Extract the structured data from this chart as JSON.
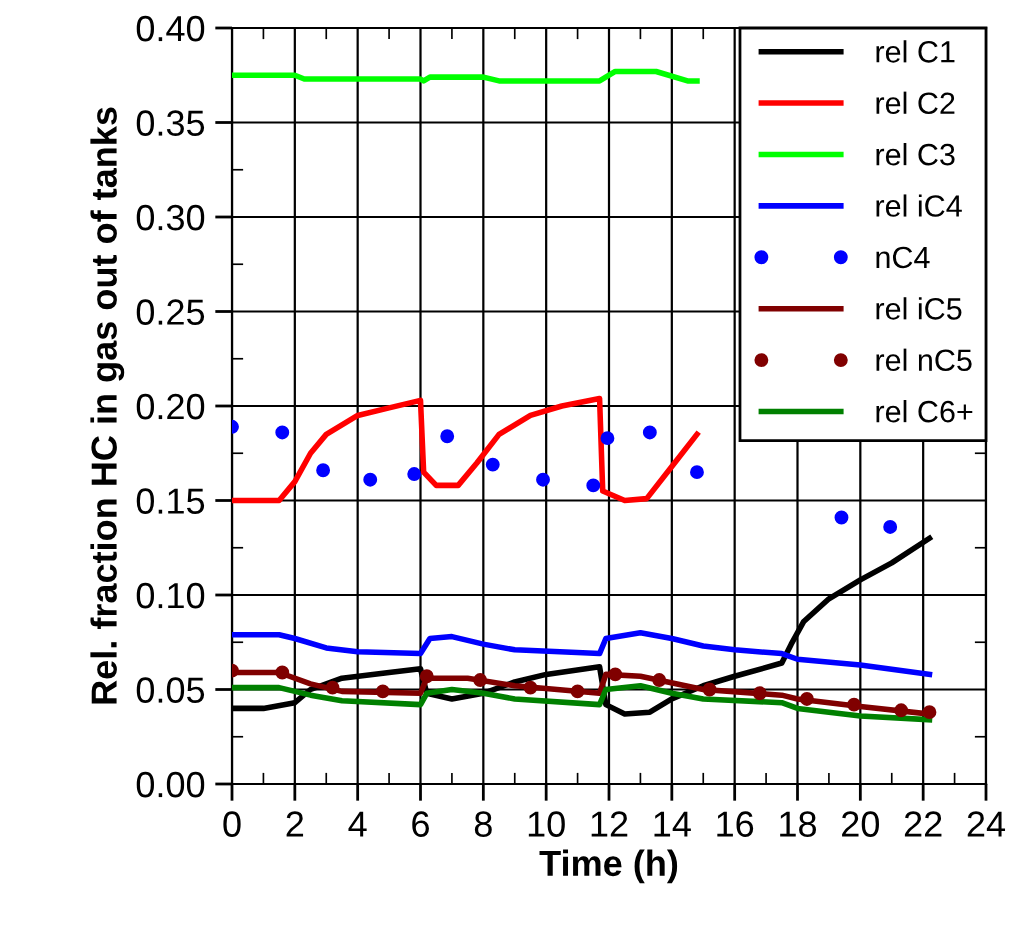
{
  "chart_data": {
    "type": "line",
    "xlabel": "Time (h)",
    "ylabel": "Rel. fraction HC in gas out of tanks",
    "xlim": [
      0,
      24
    ],
    "ylim": [
      0,
      0.4
    ],
    "xticks": [
      0,
      2,
      4,
      6,
      8,
      10,
      12,
      14,
      16,
      18,
      20,
      22,
      24
    ],
    "yticks": [
      {
        "value": 0,
        "label": "0.00"
      },
      {
        "value": 0.05,
        "label": "0.05"
      },
      {
        "value": 0.1,
        "label": "0.10"
      },
      {
        "value": 0.15,
        "label": "0.15"
      },
      {
        "value": 0.2,
        "label": "0.20"
      },
      {
        "value": 0.25,
        "label": "0.25"
      },
      {
        "value": 0.3,
        "label": "0.30"
      },
      {
        "value": 0.35,
        "label": "0.35"
      },
      {
        "value": 0.4,
        "label": "0.40"
      }
    ],
    "grid": true,
    "legend": "top right",
    "series": [
      {
        "name": "rel C1",
        "color": "#000000",
        "x": [
          0,
          1,
          2,
          2.5,
          3.5,
          5,
          6,
          6.2,
          7,
          8,
          9,
          10,
          11.7,
          11.9,
          12.5,
          13.3,
          14,
          15,
          16,
          17.5,
          17.8,
          18.2,
          19,
          20,
          21,
          22.2
        ],
        "values": [
          0.04,
          0.04,
          0.043,
          0.05,
          0.056,
          0.059,
          0.061,
          0.048,
          0.045,
          0.048,
          0.054,
          0.058,
          0.062,
          0.042,
          0.037,
          0.038,
          0.045,
          0.052,
          0.057,
          0.064,
          0.074,
          0.086,
          0.098,
          0.108,
          0.117,
          0.13
        ]
      },
      {
        "name": "rel C2",
        "color": "#ff0000",
        "x": [
          0,
          1.5,
          2,
          2.5,
          3,
          4,
          5,
          6,
          6.1,
          6.5,
          7.2,
          7.8,
          8.5,
          9.5,
          10.5,
          11.7,
          11.8,
          12.5,
          13.2,
          14,
          14.8
        ],
        "values": [
          0.15,
          0.15,
          0.16,
          0.175,
          0.185,
          0.195,
          0.199,
          0.203,
          0.165,
          0.158,
          0.158,
          0.17,
          0.185,
          0.195,
          0.2,
          0.204,
          0.155,
          0.15,
          0.151,
          0.168,
          0.185
        ]
      },
      {
        "name": "rel C3",
        "color": "#00ff00",
        "x": [
          0,
          2,
          2.3,
          6,
          6.1,
          6.3,
          8,
          8.5,
          11.7,
          12.2,
          13.5,
          14.5,
          14.8
        ],
        "values": [
          0.375,
          0.375,
          0.373,
          0.373,
          0.372,
          0.374,
          0.374,
          0.372,
          0.372,
          0.377,
          0.377,
          0.372,
          0.372
        ]
      },
      {
        "name": "rel iC4",
        "color": "#0000ff",
        "x": [
          0,
          1.5,
          2,
          3,
          4,
          6,
          6.3,
          7,
          8,
          9,
          11.7,
          11.9,
          13,
          14,
          15,
          16,
          17.5,
          18,
          20,
          22.2
        ],
        "values": [
          0.079,
          0.079,
          0.077,
          0.072,
          0.07,
          0.069,
          0.077,
          0.078,
          0.074,
          0.071,
          0.069,
          0.077,
          0.08,
          0.077,
          0.073,
          0.071,
          0.069,
          0.066,
          0.063,
          0.058
        ]
      },
      {
        "name": "nC4",
        "color": "#0000ff",
        "type": "scatter",
        "marker": "circle",
        "x": [
          0,
          1.6,
          2.9,
          4.4,
          5.8,
          6.85,
          8.3,
          9.9,
          11.5,
          11.95,
          13.3,
          14.8,
          19.4,
          20.95
        ],
        "values": [
          0.189,
          0.186,
          0.166,
          0.161,
          0.164,
          0.184,
          0.169,
          0.161,
          0.158,
          0.183,
          0.186,
          0.165,
          0.141,
          0.136
        ]
      },
      {
        "name": "rel iC5",
        "color": "#800000",
        "x": [
          0,
          1.5,
          2.5,
          3.5,
          6,
          6.2,
          7.5,
          9,
          11.7,
          11.9,
          13,
          15,
          17.5,
          18,
          20,
          22.2
        ],
        "values": [
          0.059,
          0.059,
          0.053,
          0.049,
          0.048,
          0.056,
          0.056,
          0.052,
          0.048,
          0.058,
          0.057,
          0.05,
          0.047,
          0.045,
          0.041,
          0.037
        ]
      },
      {
        "name": "rel nC5",
        "color": "#800000",
        "type": "scatter",
        "marker": "circle",
        "x": [
          0,
          1.6,
          3.2,
          4.8,
          6.2,
          7.9,
          9.5,
          11,
          12.2,
          13.6,
          15.2,
          16.8,
          18.3,
          19.8,
          21.3,
          22.2
        ],
        "values": [
          0.06,
          0.059,
          0.051,
          0.049,
          0.057,
          0.055,
          0.051,
          0.049,
          0.058,
          0.055,
          0.05,
          0.048,
          0.045,
          0.042,
          0.039,
          0.038
        ]
      },
      {
        "name": "rel C6+",
        "color": "#008000",
        "x": [
          0,
          1.5,
          2.5,
          3.5,
          6,
          6.2,
          7,
          8,
          9,
          11.7,
          11.9,
          13,
          14,
          15,
          17.5,
          18,
          20,
          22.2
        ],
        "values": [
          0.051,
          0.051,
          0.047,
          0.044,
          0.042,
          0.048,
          0.05,
          0.048,
          0.045,
          0.042,
          0.05,
          0.052,
          0.048,
          0.045,
          0.043,
          0.04,
          0.036,
          0.034
        ]
      }
    ]
  }
}
